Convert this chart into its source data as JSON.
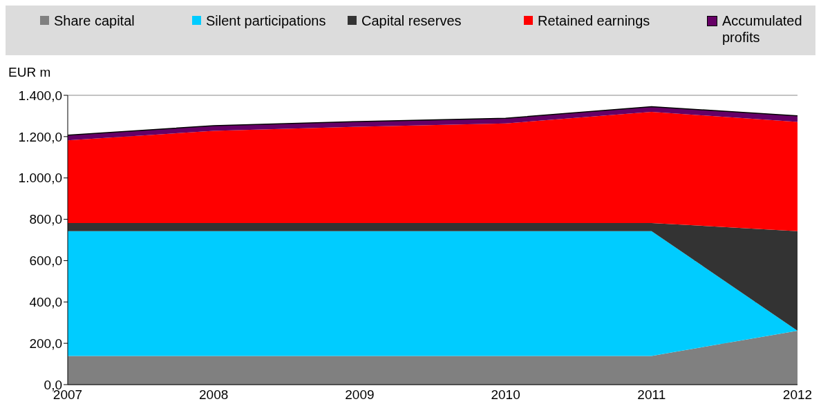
{
  "chart_data": {
    "type": "area",
    "stacked": true,
    "ylabel": "EUR m",
    "categories": [
      "2007",
      "2008",
      "2009",
      "2010",
      "2011",
      "2012"
    ],
    "series": [
      {
        "name": "Share capital",
        "color": "#808080",
        "values": [
          139,
          139,
          139,
          139,
          139,
          261
        ]
      },
      {
        "name": "Silent participations",
        "color": "#00ccff",
        "values": [
          604,
          604,
          604,
          604,
          604,
          0
        ]
      },
      {
        "name": "Capital reserves",
        "color": "#333333",
        "values": [
          39,
          39,
          39,
          39,
          39,
          482
        ]
      },
      {
        "name": "Retained earnings",
        "color": "#ff0000",
        "values": [
          400,
          446,
          466,
          482,
          538,
          528
        ]
      },
      {
        "name": "Accumulated profits",
        "color": "#660066",
        "values": [
          25,
          25,
          25,
          25,
          25,
          30
        ]
      }
    ],
    "ylim": [
      0,
      1400
    ],
    "yticks": [
      {
        "value": 0,
        "label": "0,0"
      },
      {
        "value": 200,
        "label": "200,0"
      },
      {
        "value": 400,
        "label": "400,0"
      },
      {
        "value": 600,
        "label": "600,0"
      },
      {
        "value": 800,
        "label": "800,0"
      },
      {
        "value": 1000,
        "label": "1.000,0"
      },
      {
        "value": 1200,
        "label": "1.200,0"
      },
      {
        "value": 1400,
        "label": "1.400,0"
      }
    ],
    "grid": "y",
    "legend": "top"
  }
}
